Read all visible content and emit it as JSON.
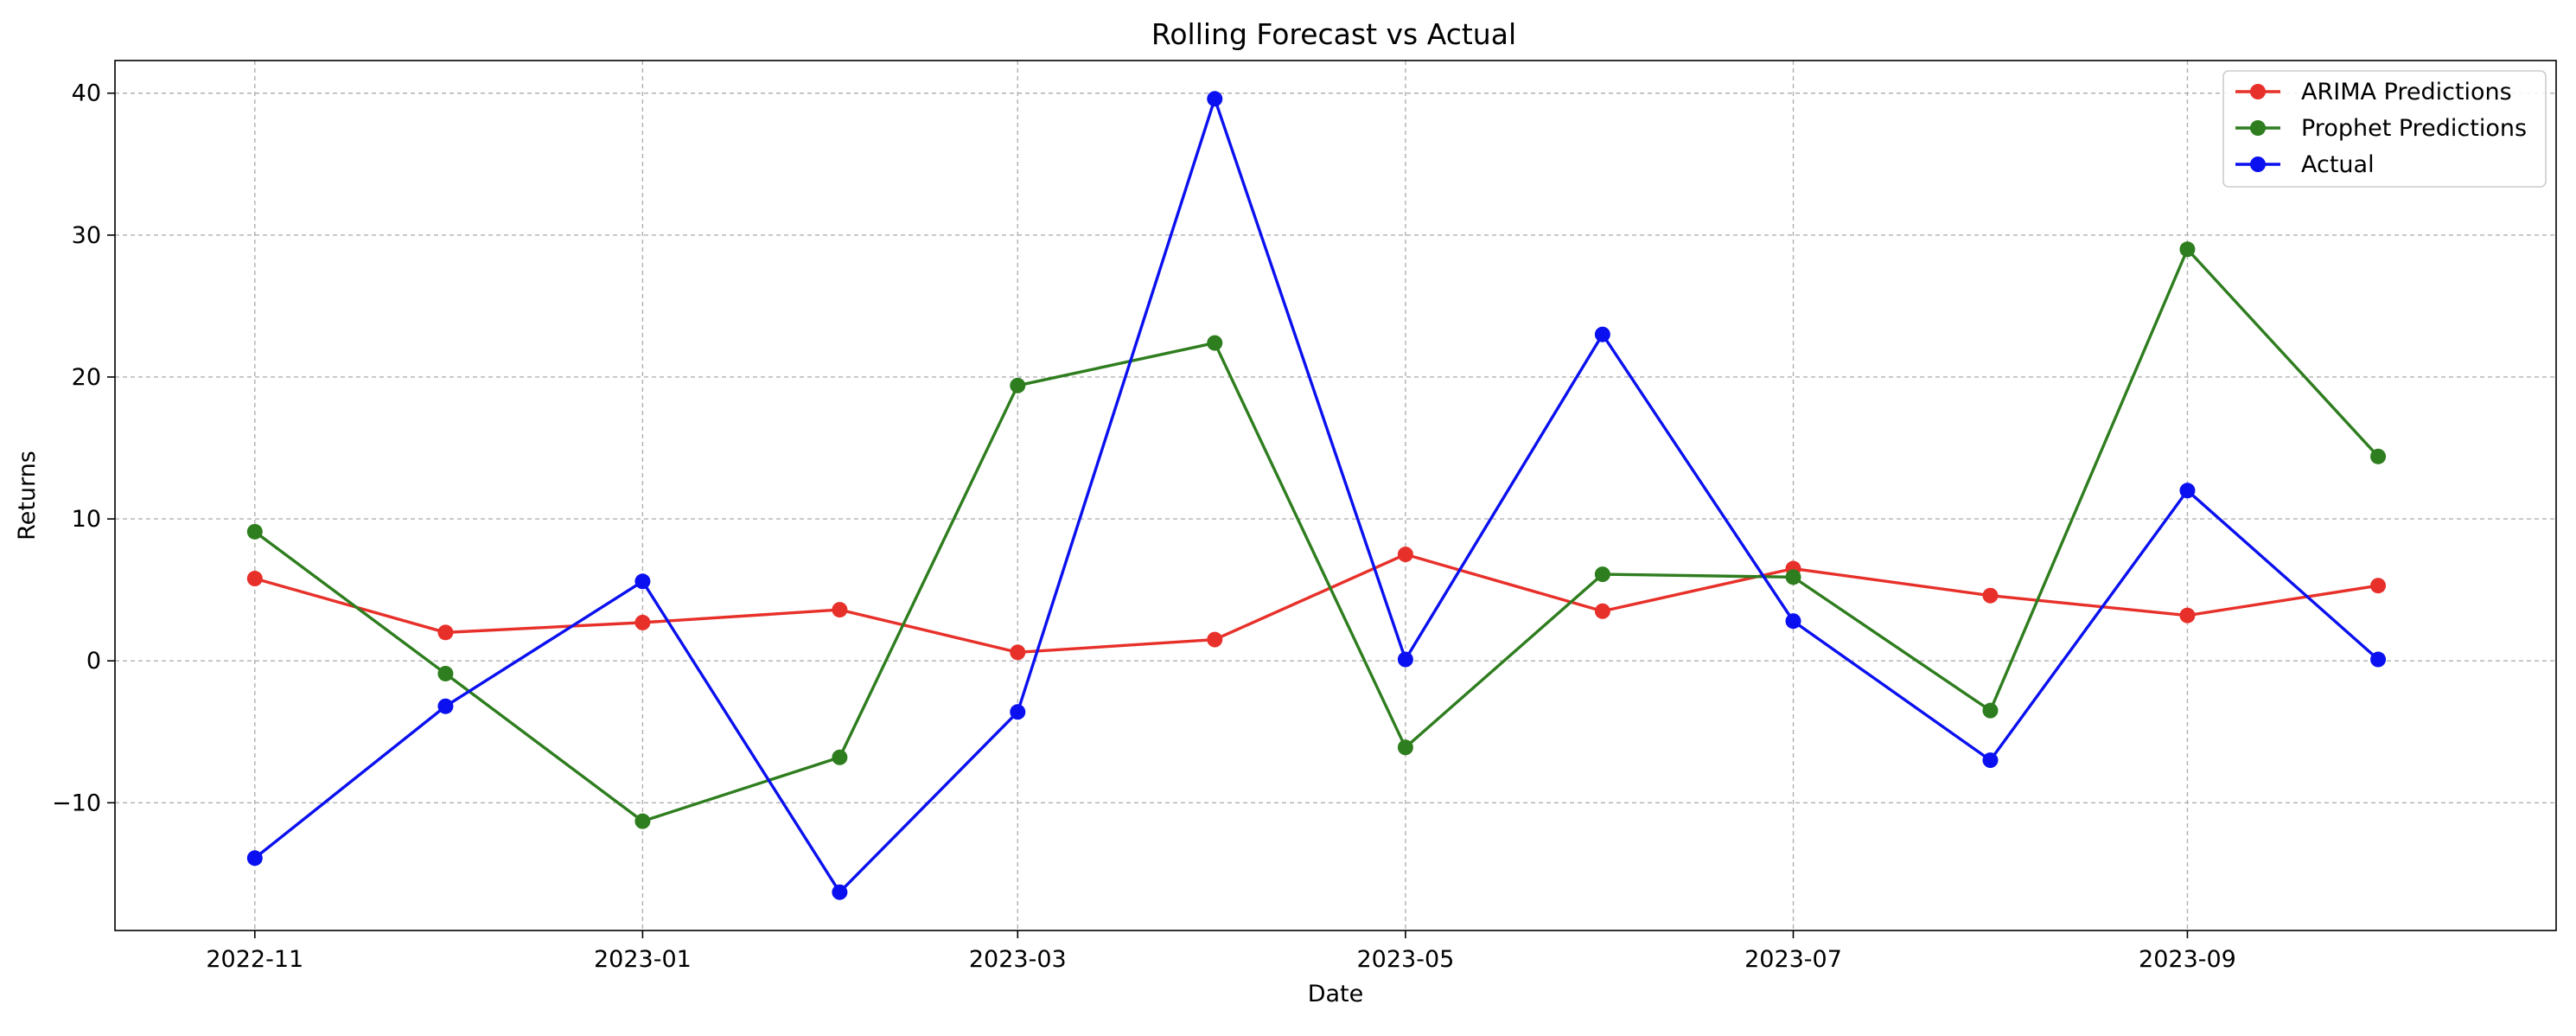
{
  "chart_data": {
    "type": "line",
    "title": "Rolling Forecast vs Actual",
    "xlabel": "Date",
    "ylabel": "Returns",
    "x": [
      "2022-11-01",
      "2022-12-01",
      "2023-01-01",
      "2023-02-01",
      "2023-03-01",
      "2023-04-01",
      "2023-05-01",
      "2023-06-01",
      "2023-07-01",
      "2023-08-01",
      "2023-09-01",
      "2023-10-01"
    ],
    "x_ticks": [
      "2022-11",
      "2023-01",
      "2023-03",
      "2023-05",
      "2023-07",
      "2023-09"
    ],
    "y_ticks": [
      -10,
      0,
      10,
      20,
      30,
      40
    ],
    "y_tick_labels": [
      "−10",
      "0",
      "10",
      "20",
      "30",
      "40"
    ],
    "ylim": [
      -19,
      42.3
    ],
    "xlim": [
      "2022-10-10",
      "2023-10-29"
    ],
    "grid": true,
    "legend_position": "top-right",
    "series": [
      {
        "name": "ARIMA Predictions",
        "color": "#e8302a",
        "marker": "circle",
        "values": [
          5.8,
          2.0,
          2.7,
          3.6,
          0.6,
          1.5,
          7.5,
          3.5,
          6.5,
          4.6,
          3.2,
          5.3
        ]
      },
      {
        "name": "Prophet Predictions",
        "color": "#2e7d1e",
        "marker": "circle",
        "values": [
          9.1,
          -0.9,
          -11.3,
          -6.8,
          19.4,
          22.4,
          -6.1,
          6.1,
          5.9,
          -3.5,
          29.0,
          14.4
        ]
      },
      {
        "name": "Actual",
        "color": "#0a10ef",
        "marker": "circle",
        "values": [
          -13.9,
          -3.2,
          5.6,
          -16.3,
          -3.6,
          39.6,
          0.1,
          23.0,
          2.8,
          -7.0,
          12.0,
          0.1
        ]
      }
    ]
  }
}
